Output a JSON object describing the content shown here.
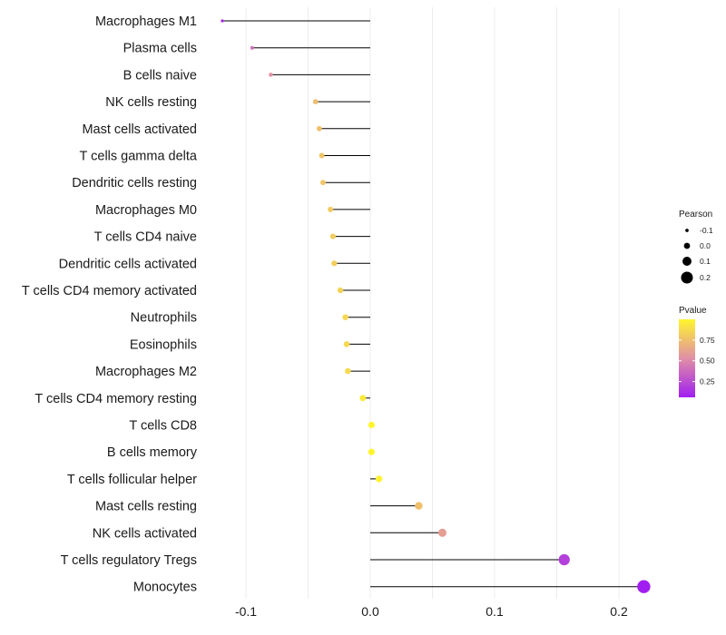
{
  "chart_data": {
    "type": "lollipop",
    "title": "",
    "xlabel": "",
    "ylabel": "",
    "xlim": [
      -0.1,
      0.2
    ],
    "x_ticks": [
      -0.1,
      0.0,
      0.1,
      0.2
    ],
    "x_tick_labels": [
      "-0.1",
      "0.0",
      "0.1",
      "0.2"
    ],
    "grid": true,
    "categories": [
      "Macrophages M1",
      "Plasma cells",
      "B cells naive",
      "NK cells resting",
      "Mast cells activated",
      "T cells gamma delta",
      "Dendritic cells resting",
      "Macrophages M0",
      "T cells CD4 naive",
      "Dendritic cells activated",
      "T cells CD4 memory activated",
      "Neutrophils",
      "Eosinophils",
      "Macrophages M2",
      "T cells CD4 memory resting",
      "T cells CD8",
      "B cells memory",
      "T cells follicular helper",
      "Mast cells resting",
      "NK cells activated",
      "T cells regulatory  Tregs",
      "Monocytes"
    ],
    "pearson": [
      -0.119,
      -0.095,
      -0.08,
      -0.044,
      -0.041,
      -0.039,
      -0.038,
      -0.032,
      -0.03,
      -0.029,
      -0.024,
      -0.02,
      -0.019,
      -0.018,
      -0.006,
      0.001,
      0.001,
      0.007,
      0.039,
      0.058,
      0.156,
      0.22
    ],
    "pvalue": [
      0.08,
      0.4,
      0.55,
      0.74,
      0.76,
      0.78,
      0.78,
      0.8,
      0.81,
      0.82,
      0.84,
      0.86,
      0.87,
      0.87,
      0.95,
      1.0,
      1.0,
      0.98,
      0.75,
      0.6,
      0.2,
      0.05
    ],
    "legend_position": "right",
    "size_legend": {
      "title": "Pearson",
      "labels": [
        "-0.1",
        "0.0",
        "0.1",
        "0.2"
      ],
      "values": [
        -0.1,
        0.0,
        0.1,
        0.2
      ]
    },
    "color_legend": {
      "title": "Pvalue",
      "labels": [
        "0.75",
        "0.50",
        "0.25"
      ],
      "values": [
        0.75,
        0.5,
        0.25
      ],
      "range": [
        0.06,
        1.0
      ],
      "low_color": "#a01ff0",
      "mid_color": "#e08fa6",
      "high_color": "#fff52d"
    },
    "colors": {
      "stem": "#000000",
      "grid": "#ececec",
      "legend_dot": "#000000"
    }
  }
}
